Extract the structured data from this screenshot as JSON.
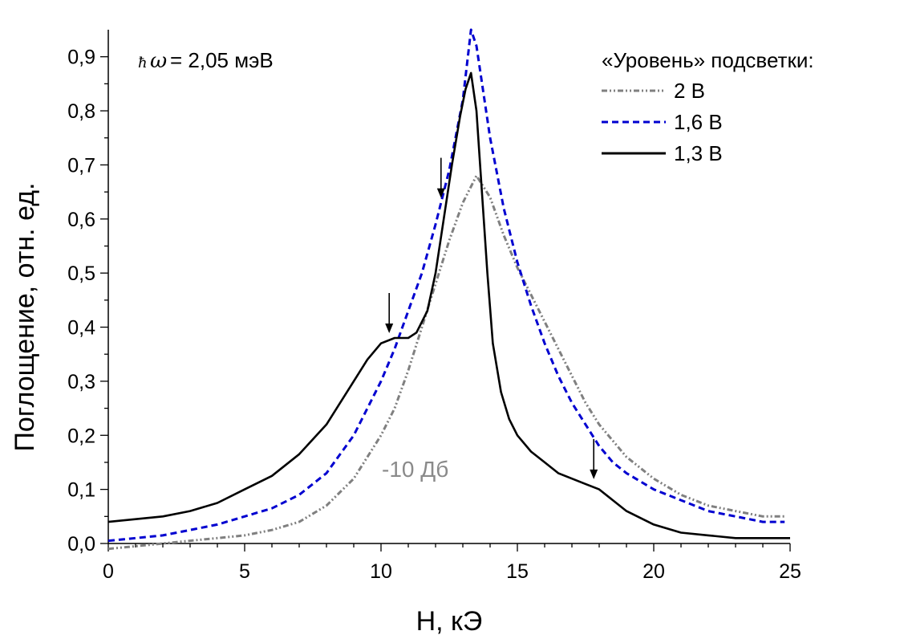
{
  "chart_data": {
    "type": "line",
    "xlabel": "H, кЭ",
    "ylabel": "Поглощение, отн. ед.",
    "xlim": [
      0,
      25
    ],
    "ylim": [
      0,
      0.95
    ],
    "x_ticks": [
      0,
      5,
      10,
      15,
      20,
      25
    ],
    "x_tick_labels": [
      "0",
      "5",
      "10",
      "15",
      "20",
      "25"
    ],
    "y_ticks": [
      0.0,
      0.1,
      0.2,
      0.3,
      0.4,
      0.5,
      0.6,
      0.7,
      0.8,
      0.9
    ],
    "y_tick_labels": [
      "0,0",
      "0,1",
      "0,2",
      "0,3",
      "0,4",
      "0,5",
      "0,6",
      "0,7",
      "0,8",
      "0,9"
    ],
    "grid": false,
    "legend_title": "«Уровень» подсветки:",
    "legend_position": "top-right",
    "series": [
      {
        "name": "2 В",
        "color": "#808080",
        "dash": "dash-dot-dot",
        "x": [
          0,
          1,
          2,
          3,
          4,
          5,
          6,
          7,
          8,
          9,
          10,
          10.5,
          11,
          11.5,
          12,
          12.5,
          13,
          13.5,
          14,
          14.5,
          15,
          15.5,
          16,
          16.5,
          17,
          17.5,
          18,
          18.5,
          19,
          20,
          21,
          22,
          23,
          24,
          24.8
        ],
        "y": [
          -0.01,
          -0.005,
          0.0,
          0.005,
          0.01,
          0.015,
          0.025,
          0.04,
          0.07,
          0.12,
          0.2,
          0.25,
          0.32,
          0.4,
          0.48,
          0.56,
          0.63,
          0.68,
          0.64,
          0.57,
          0.51,
          0.46,
          0.41,
          0.36,
          0.31,
          0.26,
          0.22,
          0.19,
          0.16,
          0.12,
          0.09,
          0.07,
          0.06,
          0.05,
          0.05
        ]
      },
      {
        "name": "1,6 В",
        "color": "#0000d0",
        "dash": "dash",
        "x": [
          0,
          1,
          2,
          3,
          4,
          5,
          6,
          7,
          8,
          9,
          10,
          10.5,
          11,
          11.5,
          12,
          12.5,
          13,
          13.3,
          13.5,
          14,
          14.5,
          15,
          15.5,
          16,
          16.5,
          17,
          17.5,
          18,
          18.5,
          19,
          20,
          21,
          22,
          23,
          24,
          24.8
        ],
        "y": [
          0.005,
          0.01,
          0.015,
          0.025,
          0.035,
          0.05,
          0.065,
          0.09,
          0.13,
          0.2,
          0.3,
          0.36,
          0.43,
          0.5,
          0.59,
          0.69,
          0.82,
          0.95,
          0.92,
          0.75,
          0.62,
          0.52,
          0.44,
          0.37,
          0.31,
          0.26,
          0.22,
          0.18,
          0.15,
          0.13,
          0.1,
          0.08,
          0.06,
          0.05,
          0.04,
          0.04
        ]
      },
      {
        "name": "1,3 В",
        "color": "#000000",
        "dash": "solid",
        "x": [
          0,
          1,
          2,
          3,
          4,
          5,
          6,
          7,
          8,
          9,
          9.5,
          10,
          10.5,
          11,
          11.3,
          11.7,
          12,
          12.3,
          12.6,
          12.9,
          13.1,
          13.3,
          13.5,
          13.7,
          13.9,
          14.1,
          14.4,
          14.7,
          15,
          15.5,
          16,
          16.5,
          17,
          17.5,
          18,
          18.5,
          19,
          20,
          21,
          22,
          23,
          24,
          25
        ],
        "y": [
          0.04,
          0.045,
          0.05,
          0.06,
          0.075,
          0.1,
          0.125,
          0.165,
          0.22,
          0.3,
          0.34,
          0.37,
          0.38,
          0.38,
          0.39,
          0.43,
          0.5,
          0.6,
          0.7,
          0.79,
          0.84,
          0.87,
          0.8,
          0.65,
          0.5,
          0.37,
          0.28,
          0.23,
          0.2,
          0.17,
          0.15,
          0.13,
          0.12,
          0.11,
          0.1,
          0.08,
          0.06,
          0.035,
          0.02,
          0.015,
          0.01,
          0.01,
          0.01
        ]
      }
    ],
    "annotations": {
      "energy_label": "= 2,05 мэВ",
      "hbar_symbol": "ħ",
      "omega_symbol": "ω",
      "attenuation_label": "-10 Дб"
    },
    "arrows": [
      {
        "x": 10.3,
        "y": 0.38
      },
      {
        "x": 12.2,
        "y": 0.63
      },
      {
        "x": 17.8,
        "y": 0.11
      }
    ]
  }
}
